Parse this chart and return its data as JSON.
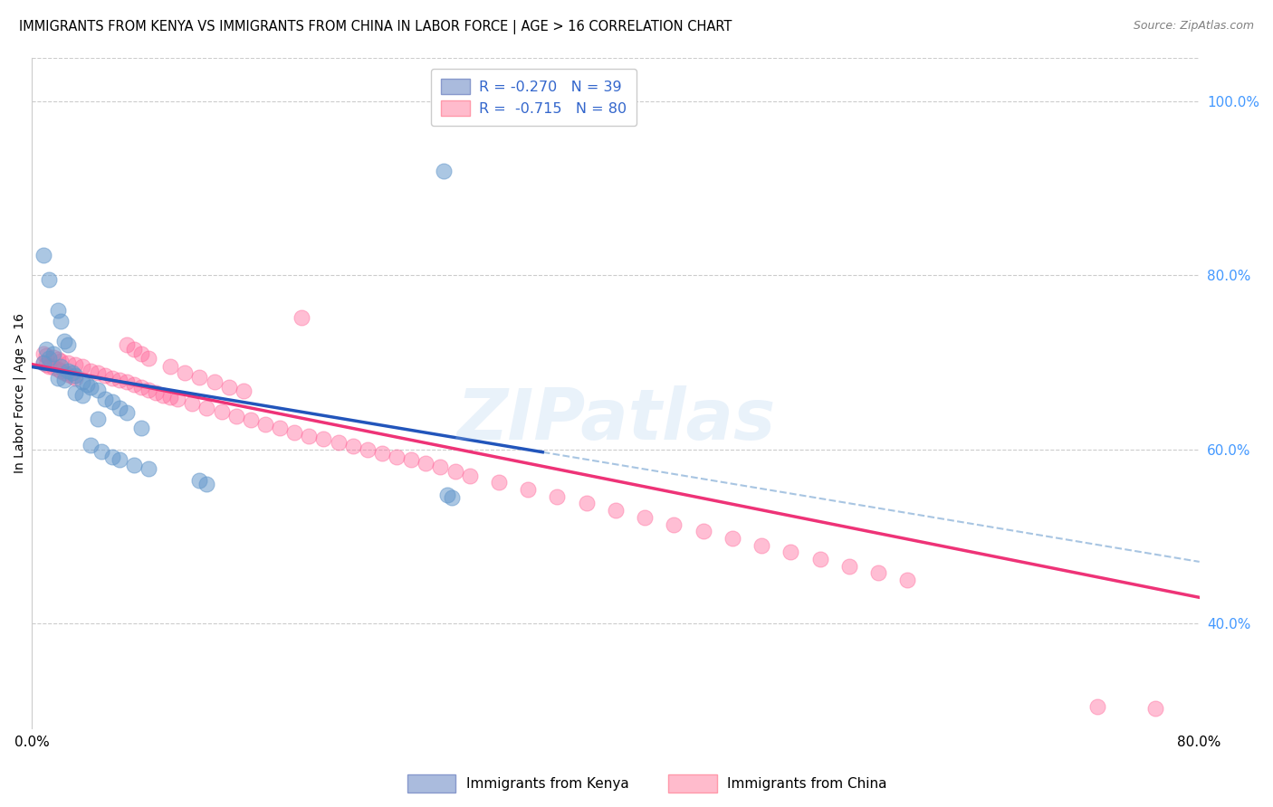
{
  "title": "IMMIGRANTS FROM KENYA VS IMMIGRANTS FROM CHINA IN LABOR FORCE | AGE > 16 CORRELATION CHART",
  "source": "Source: ZipAtlas.com",
  "ylabel": "In Labor Force | Age > 16",
  "xlim": [
    0.0,
    0.8
  ],
  "ylim": [
    0.28,
    1.05
  ],
  "kenya_color": "#6699cc",
  "china_color": "#ff6699",
  "kenya_line_color": "#2255bb",
  "china_line_color": "#ee3377",
  "dashed_line_color": "#99bbdd",
  "kenya_R": -0.27,
  "kenya_N": 39,
  "china_R": -0.715,
  "china_N": 80,
  "legend_color": "#3366cc",
  "watermark_text": "ZIPatlas",
  "watermark_color": "#aaccee",
  "background_color": "#ffffff",
  "grid_color": "#cccccc",
  "ytick_right_color": "#4499ff",
  "ytick_values": [
    0.4,
    0.6,
    0.8,
    1.0
  ],
  "ytick_labels": [
    "40.0%",
    "60.0%",
    "80.0%",
    "100.0%"
  ],
  "xtick_values": [
    0.0,
    0.1,
    0.2,
    0.3,
    0.4,
    0.5,
    0.6,
    0.7,
    0.8
  ],
  "xtick_labels": [
    "0.0%",
    "",
    "",
    "",
    "",
    "",
    "",
    "",
    "80.0%"
  ],
  "bottom_legend_kenya": "Immigrants from Kenya",
  "bottom_legend_china": "Immigrants from China",
  "kenya_intercept": 0.695,
  "kenya_slope": -0.28,
  "china_intercept": 0.698,
  "china_slope": -0.335
}
